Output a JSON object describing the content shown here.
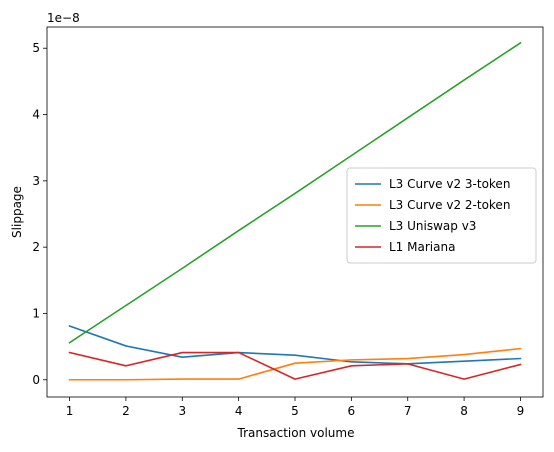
{
  "chart_data": {
    "type": "line",
    "title": "",
    "xlabel": "Transaction volume",
    "ylabel": "Slippage",
    "scale_factor_label": "1e−8",
    "scale_exponent": -8,
    "x": [
      1,
      2,
      3,
      4,
      5,
      6,
      7,
      8,
      9
    ],
    "x_ticks": [
      "1",
      "2",
      "3",
      "4",
      "5",
      "6",
      "7",
      "8",
      "9"
    ],
    "y_ticks": [
      "0",
      "1",
      "2",
      "3",
      "4",
      "5"
    ],
    "y_tick_values": [
      0,
      1,
      2,
      3,
      4,
      5
    ],
    "xlim": [
      0.6,
      9.4
    ],
    "ylim": [
      -0.26,
      5.32
    ],
    "grid": false,
    "legend_position": "center-right",
    "series": [
      {
        "name": "L3 Curve v2 3-token",
        "color": "#1f77b4",
        "values": [
          0.81,
          0.51,
          0.34,
          0.41,
          0.37,
          0.27,
          0.24,
          0.28,
          0.32
        ]
      },
      {
        "name": "L3 Curve v2 2-token",
        "color": "#ff7f0e",
        "values": [
          0.0,
          0.0,
          0.01,
          0.01,
          0.25,
          0.3,
          0.32,
          0.38,
          0.47
        ]
      },
      {
        "name": "L3 Uniswap v3",
        "color": "#2ca02c",
        "values": [
          0.56,
          1.12,
          1.68,
          2.25,
          2.81,
          3.38,
          3.95,
          4.52,
          5.08
        ]
      },
      {
        "name": "L1 Mariana",
        "color": "#d62728",
        "values": [
          0.41,
          0.21,
          0.41,
          0.41,
          0.01,
          0.21,
          0.24,
          0.01,
          0.23
        ]
      }
    ]
  }
}
